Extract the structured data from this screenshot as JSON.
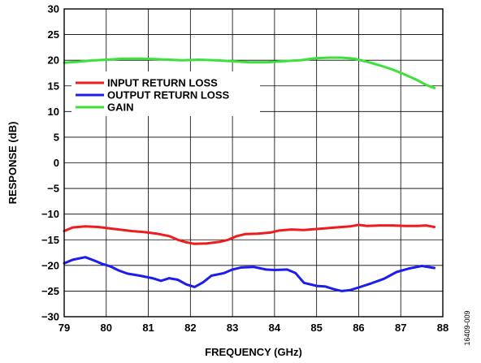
{
  "chart_data": {
    "type": "line",
    "xlabel": "FREQUENCY (GHz)",
    "ylabel": "RESPONSE (dB)",
    "xlim": [
      79,
      88
    ],
    "ylim": [
      -30,
      30
    ],
    "x_ticks": [
      79,
      80,
      81,
      82,
      83,
      84,
      85,
      86,
      87,
      88
    ],
    "y_ticks": [
      30,
      25,
      20,
      15,
      10,
      5,
      0,
      -5,
      -10,
      -15,
      -20,
      -25,
      -30
    ],
    "y_tick_labels": [
      "30",
      "25",
      "20",
      "15",
      "10",
      "5",
      "0",
      "−5",
      "−10",
      "−15",
      "−20",
      "−25",
      "−30"
    ],
    "grid": true,
    "legend_position": "upper-left",
    "figure_id": "16409-009",
    "series": [
      {
        "name": "INPUT RETURN LOSS",
        "color": "#ee1c1c",
        "x": [
          79.0,
          79.2,
          79.5,
          79.8,
          80.0,
          80.3,
          80.6,
          80.9,
          81.2,
          81.5,
          81.7,
          81.9,
          82.1,
          82.4,
          82.7,
          82.9,
          83.1,
          83.3,
          83.6,
          83.9,
          84.1,
          84.4,
          84.7,
          85.0,
          85.3,
          85.6,
          85.8,
          86.0,
          86.2,
          86.5,
          86.8,
          87.1,
          87.4,
          87.6,
          87.8
        ],
        "y": [
          -13.3,
          -12.6,
          -12.4,
          -12.5,
          -12.7,
          -13.0,
          -13.3,
          -13.5,
          -13.8,
          -14.3,
          -15.0,
          -15.5,
          -15.8,
          -15.7,
          -15.4,
          -15.0,
          -14.3,
          -13.9,
          -13.8,
          -13.6,
          -13.2,
          -13.0,
          -13.1,
          -12.9,
          -12.7,
          -12.5,
          -12.4,
          -12.1,
          -12.3,
          -12.2,
          -12.2,
          -12.3,
          -12.3,
          -12.2,
          -12.5
        ]
      },
      {
        "name": "OUTPUT RETURN LOSS",
        "color": "#1c1cee",
        "x": [
          79.0,
          79.2,
          79.5,
          79.7,
          79.9,
          80.1,
          80.3,
          80.5,
          80.8,
          81.1,
          81.3,
          81.5,
          81.7,
          81.9,
          82.1,
          82.3,
          82.5,
          82.8,
          83.0,
          83.2,
          83.5,
          83.8,
          84.0,
          84.3,
          84.5,
          84.7,
          85.0,
          85.2,
          85.4,
          85.6,
          85.8,
          86.0,
          86.3,
          86.6,
          86.9,
          87.2,
          87.5,
          87.8
        ],
        "y": [
          -19.6,
          -18.9,
          -18.4,
          -19.0,
          -19.7,
          -20.2,
          -21.0,
          -21.6,
          -22.0,
          -22.5,
          -23.0,
          -22.5,
          -22.8,
          -23.7,
          -24.2,
          -23.3,
          -22.0,
          -21.5,
          -20.8,
          -20.4,
          -20.3,
          -20.8,
          -20.9,
          -20.8,
          -21.5,
          -23.4,
          -24.0,
          -24.1,
          -24.6,
          -25.0,
          -24.8,
          -24.3,
          -23.5,
          -22.6,
          -21.3,
          -20.6,
          -20.1,
          -20.5
        ]
      },
      {
        "name": "GAIN",
        "color": "#3ce13c",
        "x": [
          79.0,
          79.3,
          79.6,
          80.0,
          80.4,
          80.8,
          81.2,
          81.5,
          81.8,
          82.2,
          82.6,
          83.0,
          83.4,
          83.8,
          84.2,
          84.6,
          85.0,
          85.3,
          85.6,
          85.9,
          86.2,
          86.5,
          86.8,
          87.1,
          87.4,
          87.6,
          87.8
        ],
        "y": [
          19.5,
          19.7,
          19.9,
          20.1,
          20.3,
          20.3,
          20.2,
          20.1,
          20.0,
          20.1,
          20.0,
          19.8,
          19.6,
          19.6,
          19.8,
          20.0,
          20.4,
          20.5,
          20.5,
          20.3,
          19.7,
          19.0,
          18.2,
          17.2,
          16.1,
          15.2,
          14.6
        ]
      }
    ]
  }
}
